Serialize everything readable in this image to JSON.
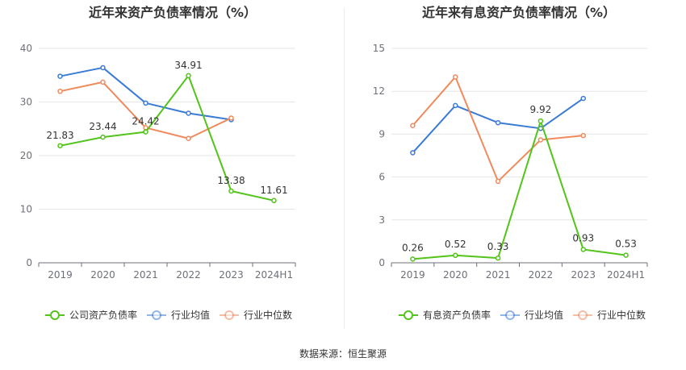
{
  "source": "数据来源：恒生聚源",
  "chart_data": [
    {
      "type": "line",
      "title": "近年来资产负债率情况（%）",
      "categories": [
        "2019",
        "2020",
        "2021",
        "2022",
        "2023",
        "2024H1"
      ],
      "ylim": [
        0,
        40
      ],
      "yticks": [
        0,
        10,
        20,
        30,
        40
      ],
      "grid": true,
      "legend_position": "bottom",
      "series": [
        {
          "name": "公司资产负债率",
          "color": "#52c41a",
          "values": [
            21.83,
            23.44,
            24.42,
            34.91,
            13.38,
            11.61
          ],
          "labels": [
            "21.83",
            "23.44",
            "24.42",
            "34.91",
            "13.38",
            "11.61"
          ]
        },
        {
          "name": "行业均值",
          "color": "#3a7bd5",
          "values": [
            34.8,
            36.4,
            29.8,
            27.9,
            26.7,
            null
          ]
        },
        {
          "name": "行业中位数",
          "color": "#f08a5d",
          "values": [
            32.0,
            33.7,
            25.2,
            23.2,
            27.0,
            null
          ]
        }
      ]
    },
    {
      "type": "line",
      "title": "近年来有息资产负债率情况（%）",
      "categories": [
        "2019",
        "2020",
        "2021",
        "2022",
        "2023",
        "2024H1"
      ],
      "ylim": [
        0,
        15
      ],
      "yticks": [
        0,
        3,
        6,
        9,
        12,
        15
      ],
      "grid": true,
      "legend_position": "bottom",
      "series": [
        {
          "name": "有息资产负债率",
          "color": "#52c41a",
          "values": [
            0.26,
            0.52,
            0.33,
            9.92,
            0.93,
            0.53
          ],
          "labels": [
            "0.26",
            "0.52",
            "0.33",
            "9.92",
            "0.93",
            "0.53"
          ]
        },
        {
          "name": "行业均值",
          "color": "#3a7bd5",
          "values": [
            7.7,
            11.0,
            9.8,
            9.4,
            11.5,
            null
          ]
        },
        {
          "name": "行业中位数",
          "color": "#f08a5d",
          "values": [
            9.6,
            13.0,
            5.7,
            8.6,
            8.9,
            null
          ]
        }
      ]
    }
  ]
}
